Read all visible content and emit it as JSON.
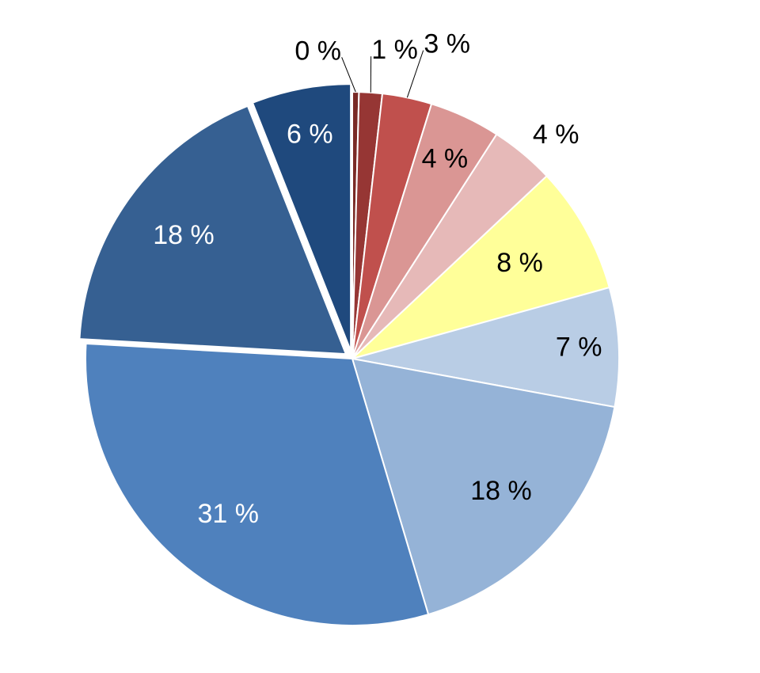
{
  "chart_data": {
    "type": "pie",
    "title": "",
    "slices": [
      {
        "label": "0 %",
        "value": 0.4,
        "color": "#7a2a26",
        "label_color": "#000000"
      },
      {
        "label": "1 %",
        "value": 1.4,
        "color": "#963634",
        "label_color": "#000000"
      },
      {
        "label": "3 %",
        "value": 3.0,
        "color": "#c0504d",
        "label_color": "#000000"
      },
      {
        "label": "4 %",
        "value": 4.3,
        "color": "#da9694",
        "label_color": "#000000"
      },
      {
        "label": "4 %",
        "value": 3.9,
        "color": "#e6b9b8",
        "label_color": "#000000"
      },
      {
        "label": "8 %",
        "value": 7.7,
        "color": "#ffff99",
        "label_color": "#000000"
      },
      {
        "label": "7 %",
        "value": 7.2,
        "color": "#b9cde5",
        "label_color": "#000000"
      },
      {
        "label": "18 %",
        "value": 17.5,
        "color": "#95b3d7",
        "label_color": "#000000"
      },
      {
        "label": "31 %",
        "value": 30.5,
        "color": "#4f81bd",
        "label_color": "#ffffff"
      },
      {
        "label": "18 %",
        "value": 18.1,
        "color": "#366092",
        "label_color": "#ffffff",
        "exploded": true
      },
      {
        "label": "6 %",
        "value": 6.0,
        "color": "#1f497d",
        "label_color": "#ffffff",
        "exploded": true
      }
    ]
  }
}
